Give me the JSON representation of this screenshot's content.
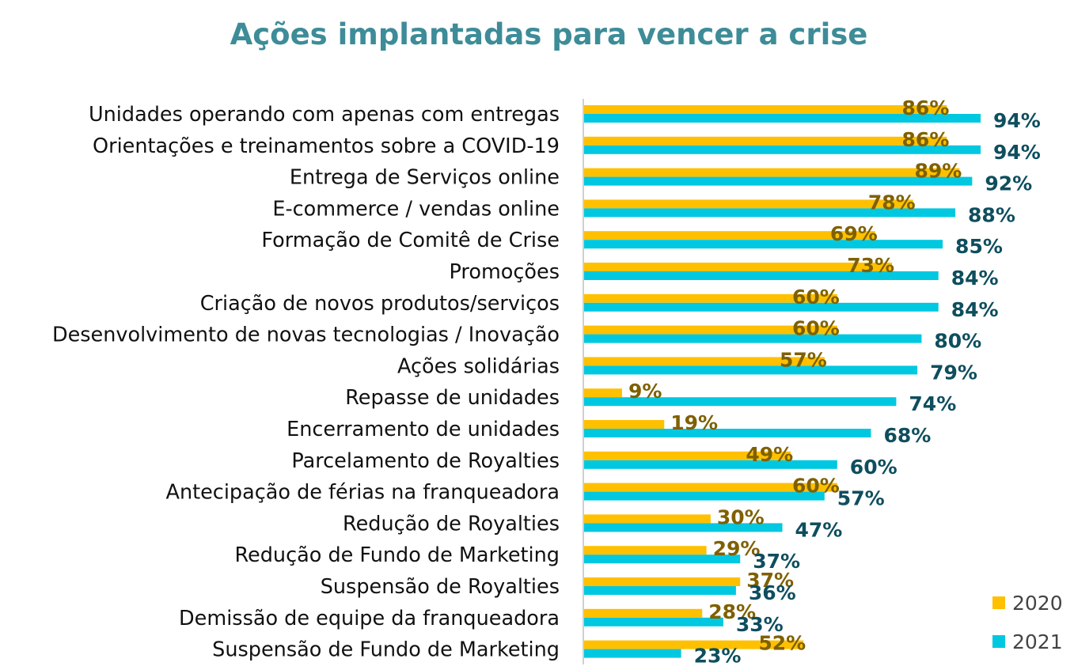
{
  "chart_data": {
    "type": "bar",
    "orientation": "horizontal",
    "title": "Ações implantadas para vencer a crise",
    "categories": [
      "Unidades operando com apenas com entregas",
      "Orientações e treinamentos sobre a COVID-19",
      "Entrega de Serviços online",
      "E-commerce / vendas online",
      "Formação de Comitê de Crise",
      "Promoções",
      "Criação de novos produtos/serviços",
      "Desenvolvimento de novas tecnologias / Inovação",
      "Ações solidárias",
      "Repasse de unidades",
      "Encerramento de unidades",
      "Parcelamento de Royalties",
      "Antecipação de férias na franqueadora",
      "Redução de Royalties",
      "Redução de Fundo de Marketing",
      "Suspensão de Royalties",
      "Demissão de equipe da franqueadora",
      "Suspensão de Fundo de Marketing"
    ],
    "series": [
      {
        "name": "2020",
        "color": "#ffc000",
        "label_color": "#7f6000",
        "values": [
          86,
          86,
          89,
          78,
          69,
          73,
          60,
          60,
          57,
          9,
          19,
          49,
          60,
          30,
          29,
          37,
          28,
          52
        ],
        "labels": [
          "86%",
          "86%",
          "89%",
          "78%",
          "69%",
          "73%",
          "60%",
          "60%",
          "57%",
          "9%",
          "19%",
          "49%",
          "60%",
          "30%",
          "29%",
          "37%",
          "28%",
          "52%"
        ]
      },
      {
        "name": "2021",
        "color": "#00c8e0",
        "label_color": "#0e4e5e",
        "values": [
          94,
          94,
          92,
          88,
          85,
          84,
          84,
          80,
          79,
          74,
          68,
          60,
          57,
          47,
          37,
          36,
          33,
          23
        ],
        "labels": [
          "94%",
          "94%",
          "92%",
          "88%",
          "85%",
          "84%",
          "84%",
          "80%",
          "79%",
          "74%",
          "68%",
          "60%",
          "57%",
          "47%",
          "37%",
          "36%",
          "33%",
          "23%"
        ]
      }
    ],
    "xlim": [
      0,
      100
    ],
    "grid": false,
    "legend_position": "bottom-right",
    "legend": [
      "2020",
      "2021"
    ]
  }
}
